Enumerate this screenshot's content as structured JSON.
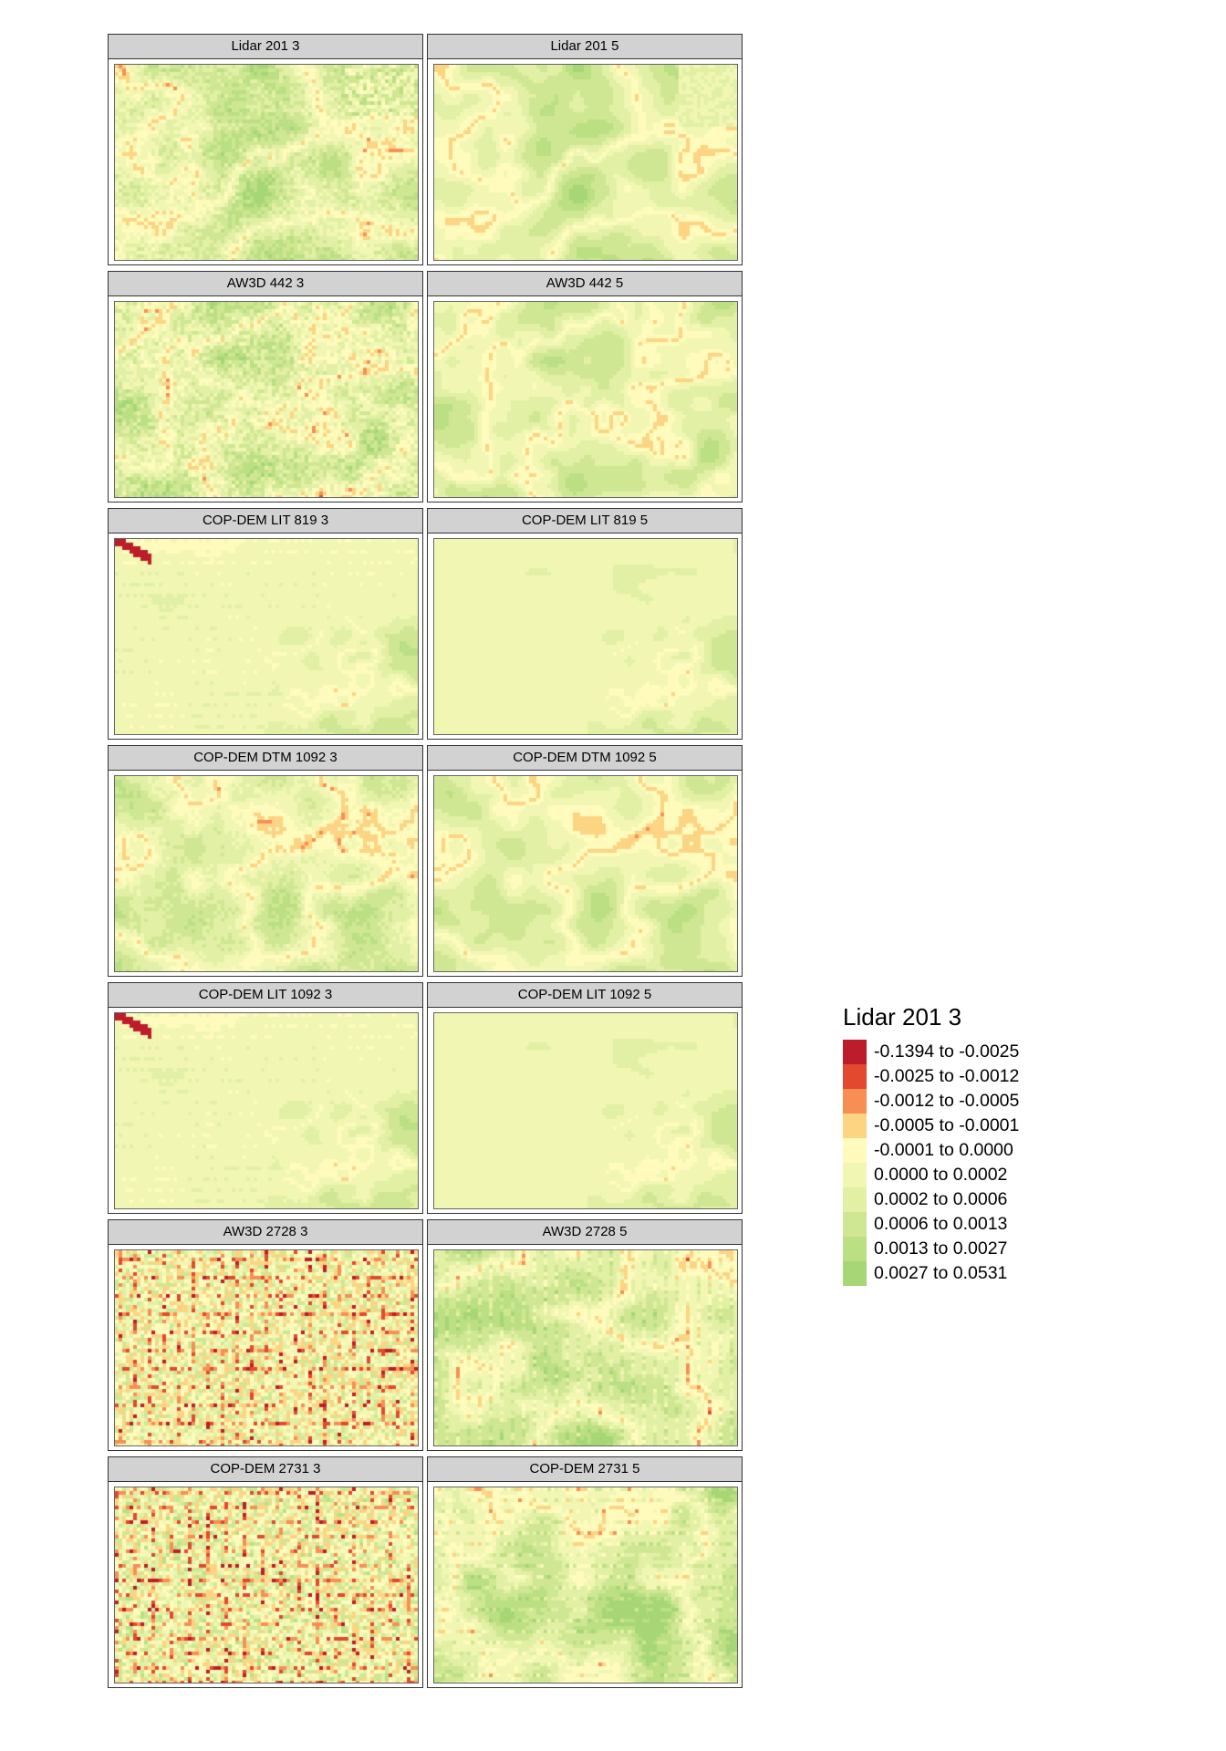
{
  "chart_data": {
    "type": "heatmap",
    "panels": [
      {
        "title": "Lidar 201 3",
        "pattern": "lidar3"
      },
      {
        "title": "Lidar 201 5",
        "pattern": "lidar5"
      },
      {
        "title": "AW3D 442 3",
        "pattern": "aw3d442_3"
      },
      {
        "title": "AW3D 442 5",
        "pattern": "aw3d442_5"
      },
      {
        "title": "COP-DEM LIT 819 3",
        "pattern": "coplit3"
      },
      {
        "title": "COP-DEM LIT 819 5",
        "pattern": "coplit5"
      },
      {
        "title": "COP-DEM DTM 1092 3",
        "pattern": "copdtm3"
      },
      {
        "title": "COP-DEM DTM 1092 5",
        "pattern": "copdtm5"
      },
      {
        "title": "COP-DEM LIT 1092 3",
        "pattern": "coplit3"
      },
      {
        "title": "COP-DEM LIT 1092 5",
        "pattern": "coplit5"
      },
      {
        "title": "AW3D 2728 3",
        "pattern": "noisy3"
      },
      {
        "title": "AW3D 2728 5",
        "pattern": "noisy5"
      },
      {
        "title": "COP-DEM 2731 3",
        "pattern": "noisy3b"
      },
      {
        "title": "COP-DEM 2731 5",
        "pattern": "noisy5b"
      }
    ],
    "layout": {
      "columns": 2,
      "rows": 7
    },
    "legend": {
      "title": "Lidar 201 3",
      "placement": "right",
      "classes": [
        {
          "label": "-0.1394 to -0.0025",
          "color": "#bd1c2a"
        },
        {
          "label": "-0.0025 to -0.0012",
          "color": "#e2492f"
        },
        {
          "label": "-0.0012 to -0.0005",
          "color": "#f78f55"
        },
        {
          "label": "-0.0005 to -0.0001",
          "color": "#fdd482"
        },
        {
          "label": "-0.0001 to 0.0000",
          "color": "#fefbbd"
        },
        {
          "label": "0.0000 to 0.0002",
          "color": "#f1f7b3"
        },
        {
          "label": "0.0002 to 0.0006",
          "color": "#e2f0a5"
        },
        {
          "label": "0.0006 to 0.0013",
          "color": "#cfe792"
        },
        {
          "label": "0.0013 to 0.0027",
          "color": "#bbdf83"
        },
        {
          "label": "0.0027 to 0.0531",
          "color": "#a6d676"
        }
      ]
    }
  }
}
